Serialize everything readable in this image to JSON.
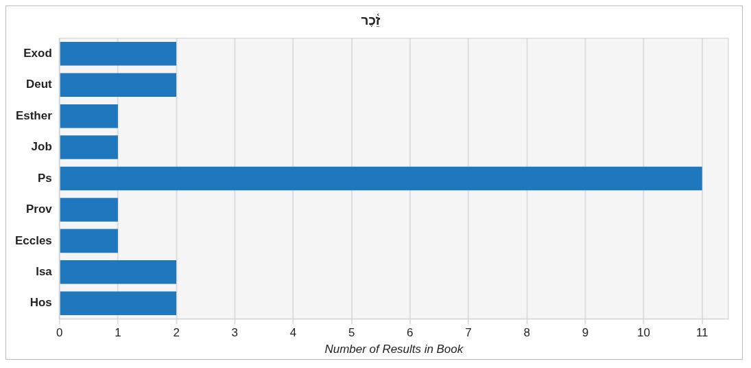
{
  "chart_data": {
    "type": "bar",
    "orientation": "horizontal",
    "title": "זֵ֫כֶר",
    "xlabel": "Number of Results in Book",
    "categories": [
      "Exod",
      "Deut",
      "Esther",
      "Job",
      "Ps",
      "Prov",
      "Eccles",
      "Isa",
      "Hos"
    ],
    "values": [
      2,
      2,
      1,
      1,
      11,
      1,
      1,
      2,
      2
    ],
    "color": "#1f77bd",
    "xlim": [
      0,
      11.45
    ],
    "xticks": [
      0,
      1,
      2,
      3,
      4,
      5,
      6,
      7,
      8,
      9,
      10,
      11
    ],
    "grid": "x",
    "legend": false
  }
}
